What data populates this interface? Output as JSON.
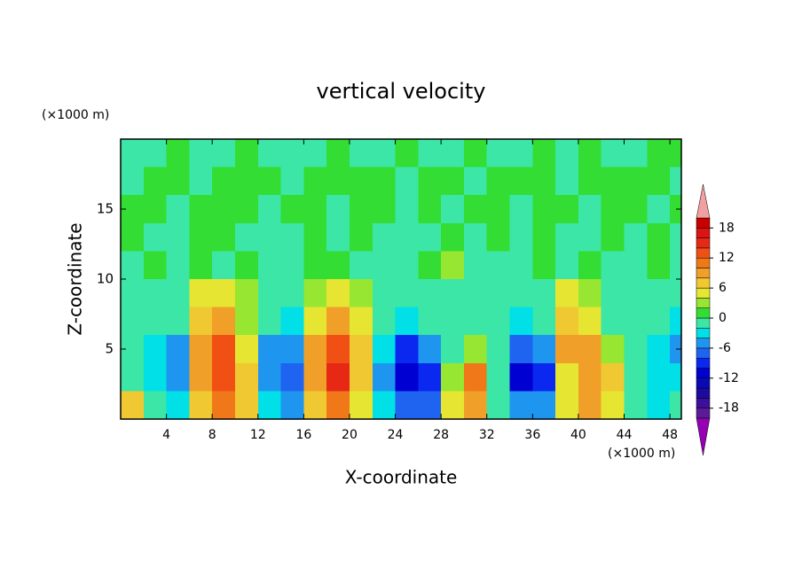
{
  "chart_data": {
    "type": "contourf",
    "title": "vertical velocity",
    "xlabel": "X-coordinate",
    "ylabel": "Z-coordinate",
    "x_unit": "(×1000 m)",
    "y_unit": "(×1000 m)",
    "xlim": [
      0,
      49
    ],
    "ylim": [
      0,
      20
    ],
    "xticks": [
      4,
      8,
      12,
      16,
      20,
      24,
      28,
      32,
      36,
      40,
      44,
      48
    ],
    "yticks": [
      5,
      10,
      15
    ],
    "x": [
      1,
      3,
      5,
      7,
      9,
      11,
      13,
      15,
      17,
      19,
      21,
      23,
      25,
      27,
      29,
      31,
      33,
      35,
      37,
      39,
      41,
      43,
      45,
      47,
      49
    ],
    "y": [
      1,
      3,
      5,
      7,
      9,
      11,
      13,
      15,
      17,
      19
    ],
    "z": [
      [
        6,
        -2,
        -4,
        6,
        10,
        6,
        -4,
        -6,
        6,
        10,
        4,
        -4,
        -8,
        -8,
        4,
        8,
        -2,
        -6,
        -6,
        4,
        8,
        4,
        -2,
        -4,
        -2
      ],
      [
        -2,
        -4,
        -6,
        8,
        12,
        6,
        -6,
        -8,
        8,
        14,
        6,
        -6,
        -12,
        -10,
        2,
        10,
        -2,
        -12,
        -10,
        4,
        8,
        6,
        -2,
        -4,
        -4
      ],
      [
        -2,
        -4,
        -6,
        8,
        12,
        4,
        -6,
        -6,
        8,
        12,
        6,
        -4,
        -10,
        -6,
        -2,
        2,
        -2,
        -8,
        -6,
        8,
        8,
        2,
        -2,
        -4,
        -6
      ],
      [
        -2,
        -2,
        -2,
        6,
        8,
        2,
        -2,
        -4,
        4,
        8,
        4,
        -2,
        -4,
        -2,
        -2,
        -2,
        -2,
        -4,
        -2,
        6,
        4,
        -2,
        -2,
        -2,
        -4
      ],
      [
        -1,
        -2,
        -1,
        4,
        4,
        2,
        -1,
        -2,
        2,
        4,
        2,
        -1,
        -2,
        -1,
        -1,
        -2,
        -1,
        -2,
        -1,
        4,
        2,
        -1,
        -2,
        -2,
        -2
      ],
      [
        -1,
        1,
        -1,
        1,
        -1,
        1,
        -1,
        -1,
        1,
        1,
        -1,
        -1,
        -1,
        1,
        3,
        -1,
        -1,
        -1,
        1,
        -1,
        1,
        -1,
        -1,
        1,
        -1
      ],
      [
        1,
        -1,
        -1,
        1,
        1,
        -1,
        -1,
        -1,
        1,
        -1,
        1,
        -1,
        -1,
        -1,
        1,
        -1,
        1,
        -1,
        1,
        -1,
        -1,
        1,
        -1,
        1,
        -1
      ],
      [
        1,
        1,
        -1,
        1,
        1,
        1,
        -1,
        1,
        1,
        -1,
        1,
        1,
        -1,
        1,
        -1,
        1,
        1,
        -1,
        1,
        1,
        -1,
        1,
        1,
        -1,
        1
      ],
      [
        -1,
        1,
        1,
        -1,
        1,
        1,
        1,
        -1,
        1,
        1,
        1,
        1,
        -1,
        1,
        1,
        -1,
        1,
        1,
        1,
        -1,
        1,
        1,
        1,
        1,
        -1
      ],
      [
        -1,
        -1,
        1,
        -1,
        -1,
        1,
        -1,
        -1,
        -1,
        1,
        -1,
        -1,
        1,
        -1,
        -1,
        1,
        -1,
        -1,
        1,
        -1,
        1,
        -1,
        -1,
        1,
        1
      ]
    ],
    "colorbar": {
      "levels": [
        -20,
        -18,
        -16,
        -14,
        -12,
        -10,
        -8,
        -6,
        -4,
        -2,
        0,
        2,
        4,
        6,
        8,
        10,
        12,
        14,
        16,
        18,
        20
      ],
      "colors": [
        "#5c1a96",
        "#3c0f9c",
        "#1e0aa0",
        "#0a0ab4",
        "#0000d2",
        "#0a28f0",
        "#1e64f0",
        "#1e96f0",
        "#00e0e6",
        "#3ce6a6",
        "#33dd33",
        "#96e632",
        "#e6e632",
        "#f0c832",
        "#f0a028",
        "#f07818",
        "#f05014",
        "#e62814",
        "#dc1414",
        "#c80000"
      ],
      "ticks": [
        -18,
        -12,
        -6,
        0,
        6,
        12,
        18
      ],
      "under_color": "#9600b4",
      "over_color": "#f0a0a0"
    }
  }
}
